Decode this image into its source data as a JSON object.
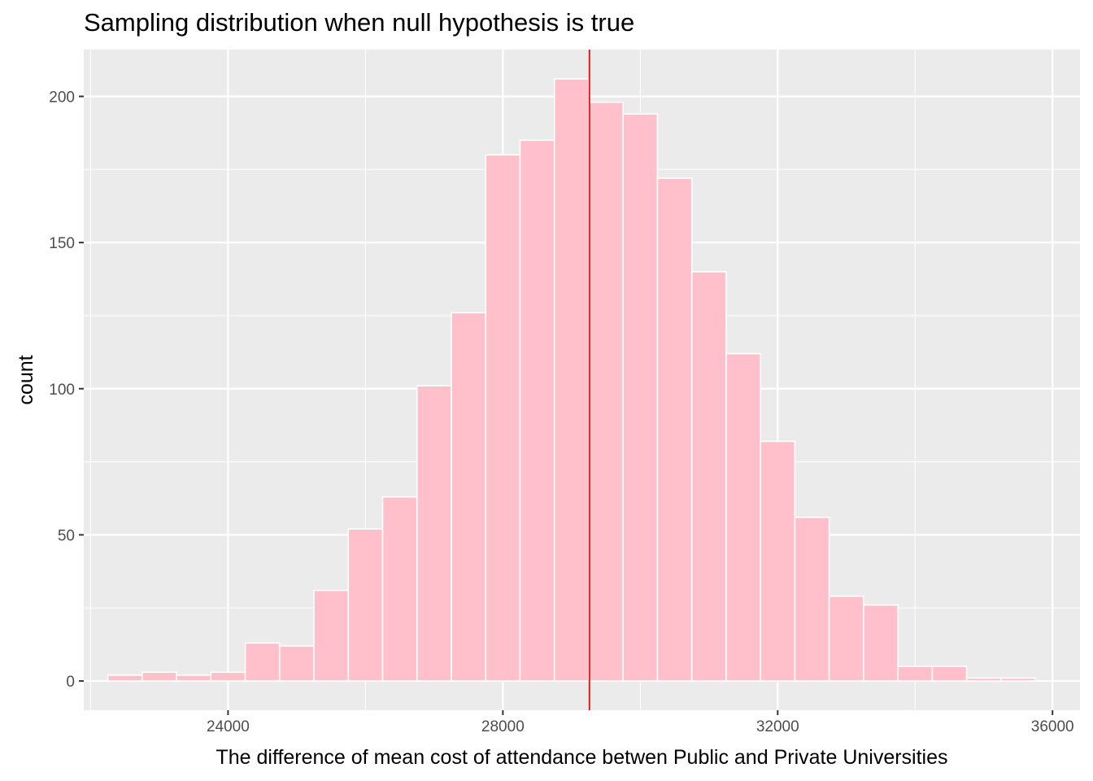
{
  "chart_data": {
    "type": "bar",
    "title": "Sampling distribution when null hypothesis is true",
    "xlabel": "The difference of mean cost of attendance betwen Public and Private Universities",
    "ylabel": "count",
    "xlim": [
      21900,
      36400
    ],
    "ylim": [
      -10,
      216
    ],
    "x_ticks": [
      24000,
      28000,
      32000,
      36000
    ],
    "x_tick_labels": [
      "24000",
      "28000",
      "32000",
      "36000"
    ],
    "y_ticks": [
      0,
      50,
      100,
      150,
      200
    ],
    "y_tick_labels": [
      "0",
      "50",
      "100",
      "150",
      "200"
    ],
    "grid": true,
    "bin_width": 500,
    "bin_centers": [
      22500,
      23000,
      23500,
      24000,
      24500,
      25000,
      25500,
      26000,
      26500,
      27000,
      27500,
      28000,
      28500,
      29000,
      29500,
      30000,
      30500,
      31000,
      31500,
      32000,
      32500,
      33000,
      33500,
      34000,
      34500,
      35000,
      35500
    ],
    "counts": [
      2,
      3,
      2,
      3,
      13,
      12,
      31,
      52,
      63,
      101,
      126,
      180,
      185,
      206,
      198,
      194,
      172,
      140,
      112,
      82,
      56,
      29,
      26,
      5,
      5,
      1,
      1
    ],
    "reference_line": {
      "x": 29260,
      "color": "#e41a1c"
    },
    "colors": {
      "bar_fill": "#ffc0cb",
      "bar_outline": "#ffffff",
      "panel_background": "#ebebeb",
      "grid": "#ffffff"
    }
  }
}
